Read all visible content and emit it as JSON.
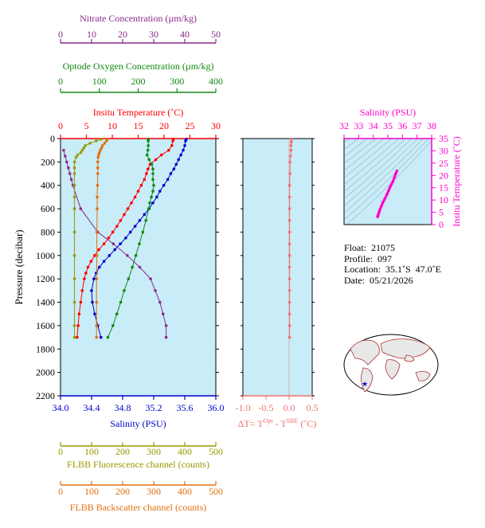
{
  "colors": {
    "nitrate": "#8b2a8b",
    "oxygen": "#118811",
    "temperature": "#ff0000",
    "salinity": "#0000cc",
    "fluorescence": "#999900",
    "backscatter": "#e07010",
    "delta_t": "#f07070",
    "ts_magenta": "#ff00cc",
    "panel_bg": "#c8ecf8",
    "ts_bg": "#c8ecf8"
  },
  "axes": {
    "nitrate": {
      "title": "Nitrate Concentration (µm/kg)",
      "ticks": [
        "0",
        "10",
        "20",
        "30",
        "40",
        "50"
      ],
      "range": [
        0,
        50
      ]
    },
    "oxygen": {
      "title": "Optode Oxygen Concentration (µm/kg)",
      "ticks": [
        "0",
        "100",
        "200",
        "300",
        "400"
      ],
      "range": [
        0,
        400
      ]
    },
    "temperature": {
      "title": "Insitu Temperature (˚C)",
      "ticks": [
        "0",
        "5",
        "10",
        "15",
        "20",
        "25",
        "30"
      ],
      "range": [
        0,
        30
      ]
    },
    "pressure": {
      "title": "Pressure (decibar)",
      "ticks": [
        "0",
        "200",
        "400",
        "600",
        "800",
        "1000",
        "1200",
        "1400",
        "1600",
        "1800",
        "2000",
        "2200"
      ],
      "range": [
        0,
        2200
      ]
    },
    "salinity": {
      "title": "Salinity (PSU)",
      "ticks": [
        "34.0",
        "34.4",
        "34.8",
        "35.2",
        "35.6",
        "36.0"
      ],
      "range": [
        34.0,
        36.0
      ]
    },
    "fluorescence": {
      "title": "FLBB Fluorescence channel (counts)",
      "ticks": [
        "0",
        "100",
        "200",
        "300",
        "400",
        "500"
      ],
      "range": [
        0,
        500
      ]
    },
    "backscatter": {
      "title": "FLBB Backscatter channel (counts)",
      "ticks": [
        "0",
        "100",
        "200",
        "300",
        "400",
        "500"
      ],
      "range": [
        0,
        500
      ]
    },
    "delta_t": {
      "title_main": "ΔT= T",
      "sup1": "Opt",
      "title_mid": " - T",
      "sup2": "SBE",
      "title_end": " (˚C)",
      "ticks": [
        "-1.0",
        "-0.5",
        "0.0",
        "0.5"
      ],
      "range": [
        -1.0,
        0.5
      ]
    },
    "ts_salinity": {
      "title": "Salinity (PSU)",
      "ticks": [
        "32",
        "33",
        "34",
        "35",
        "36",
        "37",
        "38"
      ],
      "range": [
        32,
        38
      ]
    },
    "ts_temperature": {
      "title": "Insitu Temperature (˚C)",
      "ticks": [
        "0",
        "5",
        "10",
        "15",
        "20",
        "25",
        "30",
        "35"
      ],
      "range": [
        0,
        35
      ]
    }
  },
  "info": {
    "float": "Float:  21075",
    "profile": "Profile:  097",
    "location": "Location:  35.1˚S  47.0˚E",
    "date": "Date:  05/21/2026"
  },
  "chart_data": {
    "type": "line",
    "y_axis": "pressure",
    "series": [
      {
        "key": "temperature",
        "pressure": [
          5,
          20,
          60,
          100,
          140,
          180,
          220,
          260,
          300,
          350,
          400,
          450,
          500,
          550,
          600,
          650,
          700,
          750,
          800,
          850,
          900,
          950,
          1000,
          1050,
          1100,
          1150,
          1200,
          1300,
          1400,
          1500,
          1600,
          1700
        ],
        "values": [
          21.8,
          21.7,
          21.5,
          20.9,
          19.5,
          18.4,
          17.3,
          16.9,
          16.6,
          16.2,
          15.6,
          15.0,
          14.4,
          13.7,
          13.0,
          12.3,
          11.6,
          10.9,
          10.1,
          9.3,
          8.4,
          7.4,
          6.6,
          5.9,
          5.3,
          4.9,
          4.6,
          4.2,
          3.9,
          3.6,
          3.4,
          3.2
        ]
      },
      {
        "key": "salinity",
        "pressure": [
          5,
          20,
          60,
          100,
          140,
          180,
          220,
          260,
          300,
          350,
          400,
          450,
          500,
          550,
          600,
          650,
          700,
          750,
          800,
          850,
          900,
          950,
          1000,
          1050,
          1100,
          1150,
          1200,
          1300,
          1400,
          1500,
          1600,
          1700
        ],
        "values": [
          35.62,
          35.61,
          35.6,
          35.58,
          35.55,
          35.52,
          35.49,
          35.46,
          35.42,
          35.38,
          35.33,
          35.28,
          35.24,
          35.19,
          35.14,
          35.08,
          35.02,
          34.96,
          34.9,
          34.84,
          34.77,
          34.7,
          34.63,
          34.56,
          34.5,
          34.46,
          34.43,
          34.4,
          34.41,
          34.44,
          34.48,
          34.52
        ]
      },
      {
        "key": "oxygen",
        "pressure": [
          5,
          20,
          60,
          100,
          140,
          180,
          220,
          260,
          300,
          350,
          400,
          450,
          500,
          550,
          600,
          700,
          800,
          900,
          1000,
          1100,
          1200,
          1300,
          1400,
          1500,
          1600,
          1700
        ],
        "values": [
          226,
          226,
          226,
          225,
          223,
          228,
          235,
          238,
          238,
          238,
          240,
          238,
          234,
          230,
          227,
          220,
          212,
          203,
          194,
          185,
          175,
          164,
          155,
          145,
          135,
          122
        ]
      },
      {
        "key": "nitrate",
        "pressure": [
          100,
          150,
          200,
          250,
          300,
          350,
          400,
          600,
          800,
          900,
          1000,
          1100,
          1200,
          1300,
          1400,
          1500,
          1600,
          1700
        ],
        "values": [
          1,
          1.5,
          2,
          2.5,
          3,
          3.5,
          4,
          6.5,
          12,
          17,
          21.5,
          25.5,
          29,
          30.5,
          32,
          33,
          34,
          34
        ]
      },
      {
        "key": "fluorescence",
        "pressure": [
          5,
          20,
          40,
          60,
          80,
          100,
          120,
          140,
          160,
          200,
          250,
          300,
          400,
          500,
          600,
          800,
          1000,
          1200,
          1400,
          1600,
          1700
        ],
        "values": [
          130,
          115,
          95,
          80,
          75,
          70,
          65,
          55,
          50,
          45,
          45,
          45,
          45,
          45,
          45,
          45,
          45,
          45,
          45,
          45,
          45
        ]
      },
      {
        "key": "backscatter",
        "pressure": [
          5,
          20,
          40,
          60,
          80,
          100,
          120,
          140,
          160,
          200,
          250,
          300,
          400,
          500,
          600,
          800,
          1000,
          1200,
          1400,
          1600,
          1700
        ],
        "values": [
          150,
          148,
          142,
          135,
          132,
          128,
          125,
          123,
          121,
          120,
          120,
          120,
          119,
          118,
          118,
          117,
          117,
          116,
          116,
          116,
          116
        ]
      },
      {
        "key": "delta_t",
        "pressure": [
          5,
          30,
          60,
          100,
          150,
          200,
          300,
          400,
          500,
          600,
          700,
          800,
          900,
          1000,
          1100,
          1200,
          1300,
          1400,
          1500,
          1600,
          1700
        ],
        "values": [
          0.05,
          0.05,
          0.04,
          0.04,
          0.03,
          0.02,
          0.02,
          0.01,
          0.01,
          0.01,
          0.01,
          0.01,
          0.01,
          0.01,
          0.01,
          0.01,
          0.01,
          0.01,
          0.01,
          0.01,
          0.01
        ]
      }
    ],
    "ts": {
      "salinity": [
        34.3,
        34.32,
        34.35,
        34.4,
        34.45,
        34.55,
        34.65,
        34.8,
        34.95,
        35.05,
        35.15,
        35.25,
        35.35,
        35.45,
        35.55,
        35.62
      ],
      "temperature": [
        3.2,
        3.6,
        4.2,
        5.0,
        6.0,
        7.4,
        8.9,
        10.6,
        12.4,
        13.8,
        15.2,
        16.4,
        17.6,
        19.2,
        20.8,
        21.8
      ]
    }
  }
}
